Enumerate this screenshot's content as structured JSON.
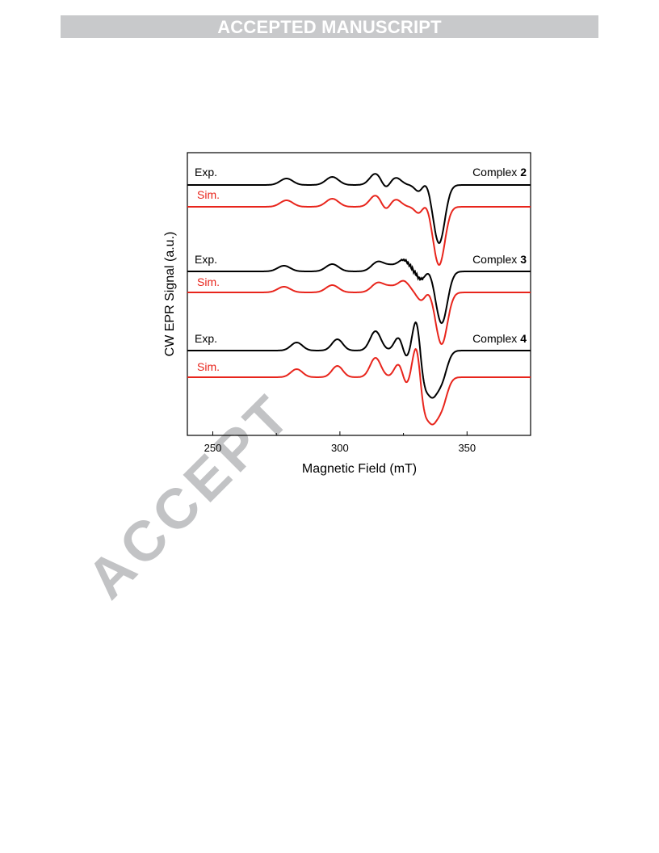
{
  "banner": {
    "text": "ACCEPTED MANUSCRIPT"
  },
  "watermark": {
    "text": "ACCEPT"
  },
  "chart_data": {
    "type": "line",
    "xlabel": "Magnetic Field (mT)",
    "ylabel": "CW EPR Signal (a.u.)",
    "xlim": [
      240,
      375
    ],
    "xticks": [
      250,
      300,
      350
    ],
    "grid": false,
    "series_colors": {
      "exp": "#000000",
      "sim": "#e8251c"
    },
    "panels": [
      {
        "label": "Complex",
        "number": "2",
        "exp_label": "Exp.",
        "sim_label": "Sim.",
        "peaks": [
          {
            "x": 279,
            "dy": -8,
            "w": 3.5
          },
          {
            "x": 297,
            "dy": -10,
            "w": 3.5
          },
          {
            "x": 314,
            "dy": -14,
            "w": 3.2
          },
          {
            "x": 318,
            "dy": 6,
            "w": 2.2
          },
          {
            "x": 322,
            "dy": -9,
            "w": 3.0
          },
          {
            "x": 331,
            "dy": 8,
            "w": 2.2
          },
          {
            "x": 334,
            "dy": -5,
            "w": 2.0
          },
          {
            "x": 339,
            "dy": 72,
            "w": 3.2
          }
        ]
      },
      {
        "label": "Complex",
        "number": "3",
        "exp_label": "Exp.",
        "sim_label": "Sim.",
        "peaks": [
          {
            "x": 278,
            "dy": -7,
            "w": 3.5
          },
          {
            "x": 297,
            "dy": -9,
            "w": 3.5
          },
          {
            "x": 315,
            "dy": -12,
            "w": 3.5
          },
          {
            "x": 320,
            "dy": -6,
            "w": 3.0
          },
          {
            "x": 325,
            "dy": -14,
            "w": 3.2
          },
          {
            "x": 332,
            "dy": 10,
            "w": 2.4
          },
          {
            "x": 335,
            "dy": -4,
            "w": 2.0
          },
          {
            "x": 340,
            "dy": 64,
            "w": 3.2
          }
        ]
      },
      {
        "label": "Complex",
        "number": "4",
        "exp_label": "Exp.",
        "sim_label": "Sim.",
        "peaks": [
          {
            "x": 283,
            "dy": -10,
            "w": 3.2
          },
          {
            "x": 299,
            "dy": -14,
            "w": 3.0
          },
          {
            "x": 314,
            "dy": -24,
            "w": 3.0
          },
          {
            "x": 323,
            "dy": -16,
            "w": 2.4
          },
          {
            "x": 326,
            "dy": 10,
            "w": 1.8
          },
          {
            "x": 330,
            "dy": -38,
            "w": 2.0
          },
          {
            "x": 333,
            "dy": 24,
            "w": 2.0
          },
          {
            "x": 336,
            "dy": 50,
            "w": 3.0
          },
          {
            "x": 340,
            "dy": 34,
            "w": 3.0
          }
        ]
      }
    ]
  }
}
